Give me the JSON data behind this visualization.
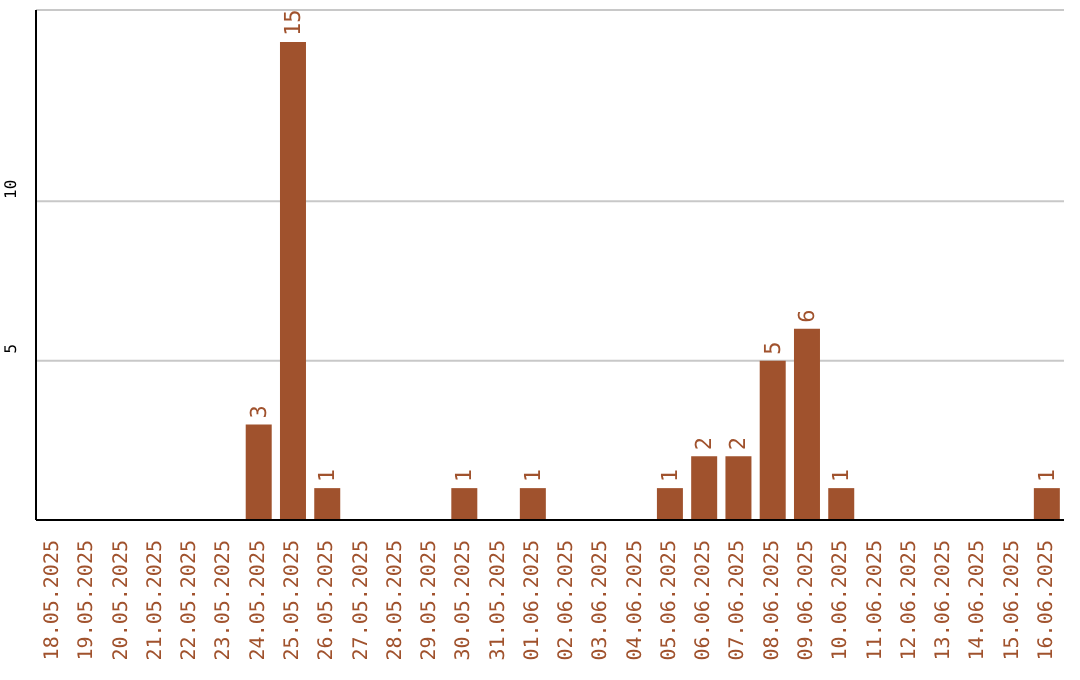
{
  "chart_data": {
    "type": "bar",
    "categories": [
      "18.05.2025",
      "19.05.2025",
      "20.05.2025",
      "21.05.2025",
      "22.05.2025",
      "23.05.2025",
      "24.05.2025",
      "25.05.2025",
      "26.05.2025",
      "27.05.2025",
      "28.05.2025",
      "29.05.2025",
      "30.05.2025",
      "31.05.2025",
      "01.06.2025",
      "02.06.2025",
      "03.06.2025",
      "04.06.2025",
      "05.06.2025",
      "06.06.2025",
      "07.06.2025",
      "08.06.2025",
      "09.06.2025",
      "10.06.2025",
      "11.06.2025",
      "12.06.2025",
      "13.06.2025",
      "14.06.2025",
      "15.06.2025",
      "16.06.2025"
    ],
    "values": [
      0,
      0,
      0,
      0,
      0,
      0,
      3,
      15,
      1,
      0,
      0,
      0,
      1,
      0,
      1,
      0,
      0,
      0,
      1,
      2,
      2,
      5,
      6,
      1,
      0,
      0,
      0,
      0,
      0,
      1
    ],
    "value_labels": [
      null,
      null,
      null,
      null,
      null,
      null,
      "3",
      "15",
      "1",
      null,
      null,
      null,
      "1",
      null,
      "1",
      null,
      null,
      null,
      "1",
      "2",
      "2",
      "5",
      "6",
      "1",
      null,
      null,
      null,
      null,
      null,
      "1"
    ],
    "color": "#a0522d",
    "ylim": [
      0,
      16
    ],
    "yticks": [
      5,
      10
    ],
    "grid": "y"
  }
}
